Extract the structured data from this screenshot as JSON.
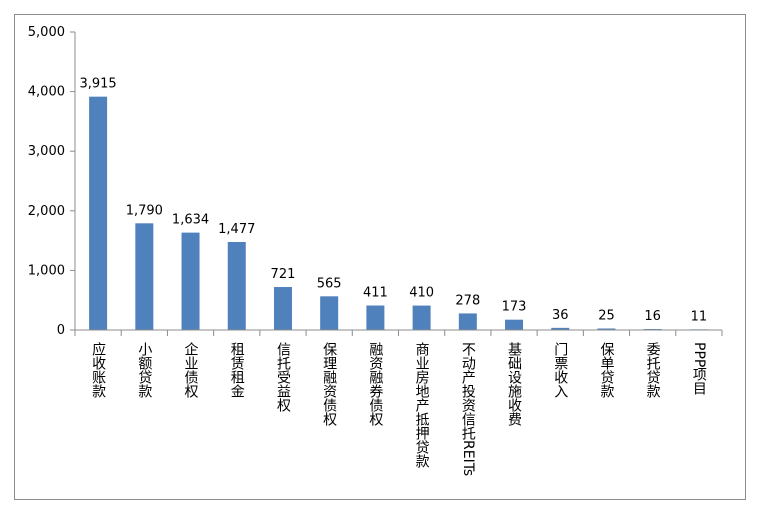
{
  "chart_data": {
    "type": "bar",
    "categories": [
      "应收账款",
      "小额贷款",
      "企业债权",
      "租赁租金",
      "信托受益权",
      "保理融资债权",
      "融资融券债权",
      "商业房地产抵押贷款",
      "不动产投资信托REITs",
      "基础设施收费",
      "门票收入",
      "保单贷款",
      "委托贷款",
      "PPP项目"
    ],
    "values": [
      3915,
      1790,
      1634,
      1477,
      721,
      565,
      411,
      410,
      278,
      173,
      36,
      25,
      16,
      11
    ],
    "data_labels": [
      "3,915",
      "1,790",
      "1,634",
      "1,477",
      "721",
      "565",
      "411",
      "410",
      "278",
      "173",
      "36",
      "25",
      "16",
      "11"
    ],
    "yticks": [
      "0",
      "1,000",
      "2,000",
      "3,000",
      "4,000",
      "5,000"
    ],
    "ylim": [
      0,
      5000
    ],
    "bar_color": "#4f81bd",
    "grid": false,
    "legend": "none"
  }
}
